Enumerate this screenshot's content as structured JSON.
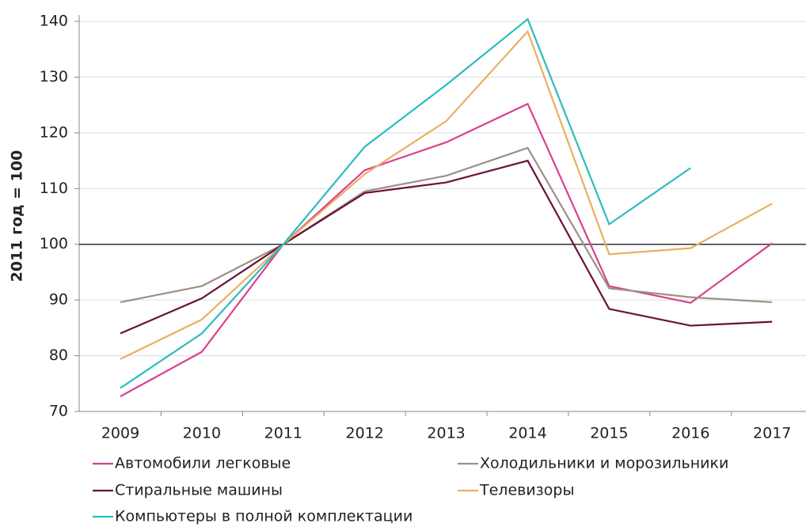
{
  "chart_data": {
    "type": "line",
    "y_label": "2011 год = 100",
    "categories": [
      "2009",
      "2010",
      "2011",
      "2012",
      "2013",
      "2014",
      "2015",
      "2016",
      "2017"
    ],
    "series": [
      {
        "name": "Автомобили легковые",
        "color": "#d9418f",
        "values": [
          72.7,
          80.7,
          100,
          113.3,
          118.3,
          125.2,
          92.5,
          89.5,
          100.2
        ]
      },
      {
        "name": "Холодильники и морозильники",
        "color": "#9e9083",
        "values": [
          89.6,
          92.5,
          100,
          109.5,
          112.3,
          117.3,
          92.1,
          90.5,
          89.6
        ]
      },
      {
        "name": "Стиральные машины",
        "color": "#6b1038",
        "values": [
          84,
          90.3,
          100,
          109.2,
          111.1,
          115,
          88.4,
          85.4,
          86.1
        ]
      },
      {
        "name": "Телевизоры",
        "color": "#e8b060",
        "values": [
          79.4,
          86.5,
          100,
          112.6,
          122.1,
          138.2,
          98.2,
          99.3,
          107.3
        ]
      },
      {
        "name": "Компьютеры в полной комплектации",
        "color": "#2bbdbd",
        "values": [
          74.2,
          84,
          100,
          117.5,
          128.6,
          140.4,
          103.6,
          113.7,
          null
        ]
      }
    ],
    "reference_line": 100,
    "ylim": [
      70,
      140
    ],
    "yticks": [
      70,
      80,
      90,
      100,
      110,
      120,
      130,
      140
    ],
    "grid": true
  }
}
